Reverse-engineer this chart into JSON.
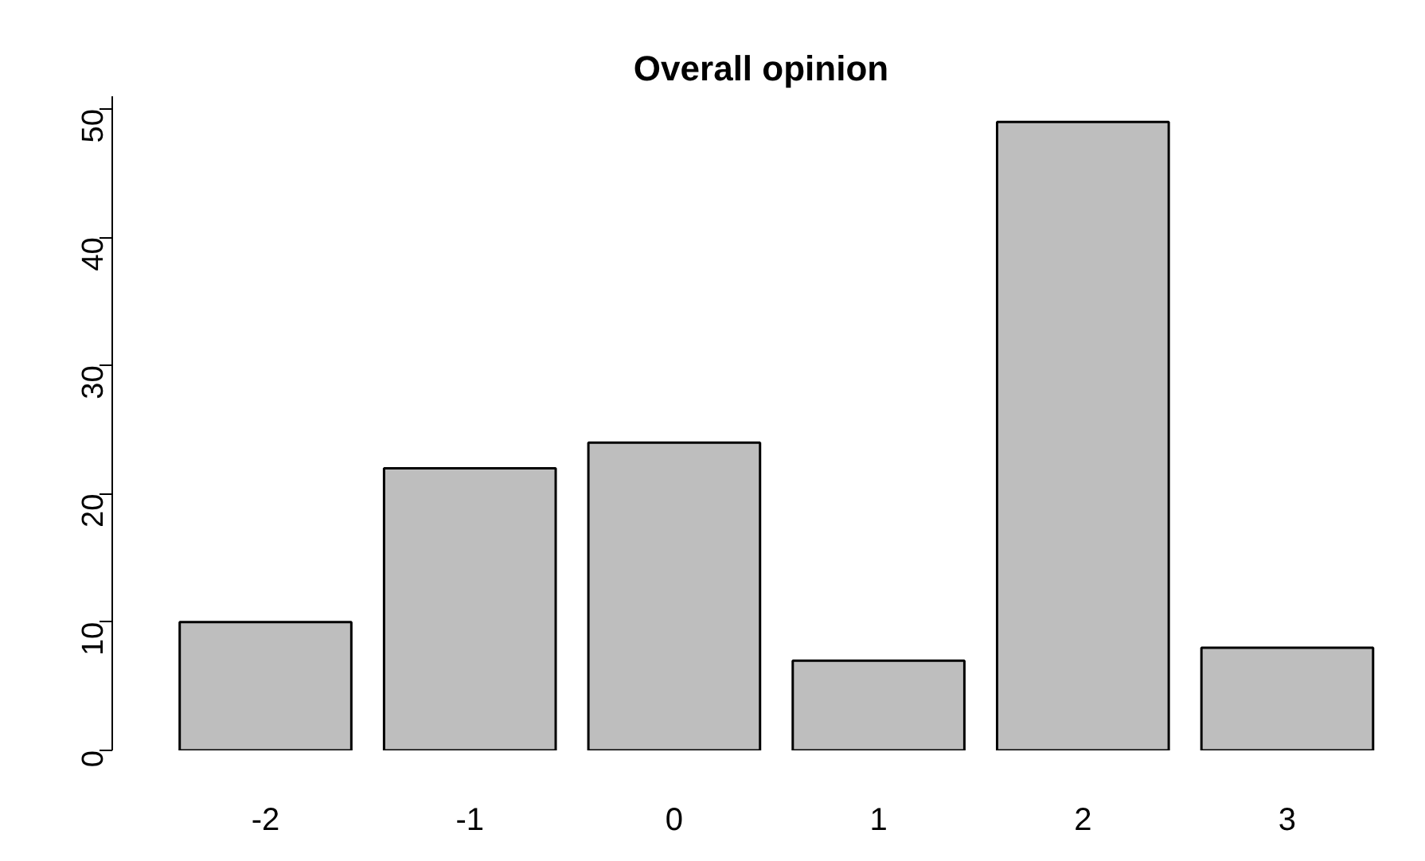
{
  "chart_data": {
    "type": "bar",
    "title": "Overall opinion",
    "categories": [
      "-2",
      "-1",
      "0",
      "1",
      "2",
      "3"
    ],
    "values": [
      10,
      22,
      24,
      7,
      49,
      8
    ],
    "color": "#bebebe",
    "ylim": [
      0,
      51
    ],
    "yticks": [
      0,
      10,
      20,
      30,
      40,
      50
    ],
    "grid": false
  }
}
